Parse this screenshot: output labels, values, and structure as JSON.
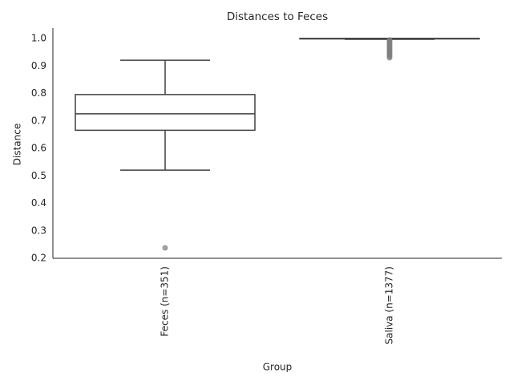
{
  "chart_data": {
    "type": "box",
    "title": "Distances to Feces",
    "xlabel": "Group",
    "ylabel": "Distance",
    "categories": [
      "Feces (n=351)",
      "Saliva (n=1377)"
    ],
    "boxes": [
      {
        "whislo": 0.521,
        "q1": 0.666,
        "med": 0.726,
        "q3": 0.796,
        "whishi": 0.921,
        "fliers": [
          0.238
        ]
      },
      {
        "whislo": 0.997,
        "q1": 0.999,
        "med": 1.0,
        "q3": 1.0,
        "whishi": 1.0,
        "fliers": [
          0.995,
          0.99,
          0.985,
          0.98,
          0.975,
          0.97,
          0.965,
          0.96,
          0.955,
          0.95,
          0.945,
          0.94,
          0.935,
          0.93
        ]
      }
    ],
    "box_color": "#ffffff",
    "edge_color": "#3f3f3f",
    "flier_color": "#7f7f7f",
    "ylim": [
      0.2,
      1.038
    ],
    "yticks": [
      {
        "value": 0.2,
        "label": "0.2"
      },
      {
        "value": 0.3,
        "label": "0.3"
      },
      {
        "value": 0.4,
        "label": "0.4"
      },
      {
        "value": 0.5,
        "label": "0.5"
      },
      {
        "value": 0.6,
        "label": "0.6"
      },
      {
        "value": 0.7,
        "label": "0.7"
      },
      {
        "value": 0.8,
        "label": "0.8"
      },
      {
        "value": 0.9,
        "label": "0.9"
      },
      {
        "value": 1.0,
        "label": "1.0"
      }
    ],
    "grid": false
  }
}
